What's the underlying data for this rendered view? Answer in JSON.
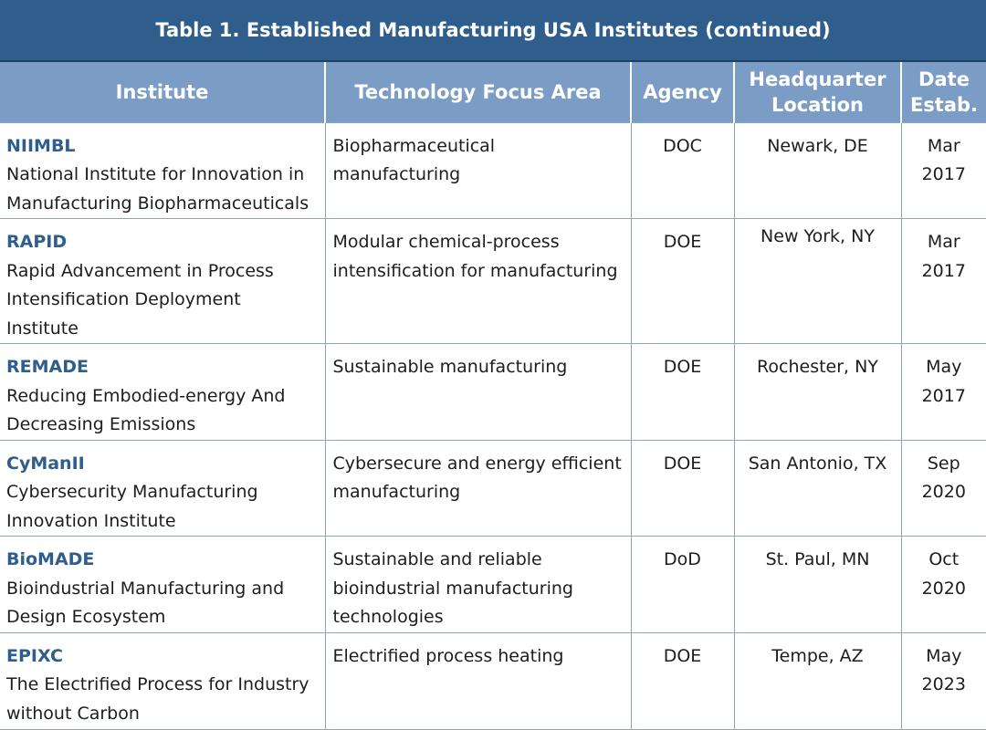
{
  "table": {
    "title": "Table 1. Established Manufacturing USA Institutes (continued)",
    "headers": {
      "institute": "Institute",
      "focus": "Technology Focus Area",
      "agency": "Agency",
      "hq_line1": "Headquarter",
      "hq_line2": "Location",
      "date_line1": "Date",
      "date_line2": "Estab."
    },
    "rows": [
      {
        "abbr": "NIIMBL",
        "name": "National Institute for Innovation in Manufacturing Biopharmaceuticals",
        "focus": "Biopharmaceutical manufacturing",
        "agency": "DOC",
        "location": "Newark, DE",
        "month": "Mar",
        "year": "2017"
      },
      {
        "abbr": "RAPID",
        "name": "Rapid Advancement in Process Intensification Deployment Institute",
        "focus": "Modular chemical-process intensification for manufacturing",
        "agency": "DOE",
        "location": "New York, NY",
        "month": "Mar",
        "year": "2017"
      },
      {
        "abbr": "REMADE",
        "name": "Reducing Embodied-energy And Decreasing Emissions",
        "focus": "Sustainable manufacturing",
        "agency": "DOE",
        "location": "Rochester, NY",
        "month": "May",
        "year": "2017"
      },
      {
        "abbr": "CyManII",
        "name": "Cybersecurity Manufacturing Innovation Institute",
        "focus": "Cybersecure and energy efficient manufacturing",
        "agency": "DOE",
        "location": "San Antonio, TX",
        "month": "Sep",
        "year": "2020"
      },
      {
        "abbr": "BioMADE",
        "name": "Bioindustrial Manufacturing and Design Ecosystem",
        "focus": "Sustainable and reliable bioindustrial manufacturing technologies",
        "agency": "DoD",
        "location": "St. Paul, MN",
        "month": "Oct",
        "year": "2020"
      },
      {
        "abbr": "EPIXC",
        "name": "The Electrified Process for Industry without Carbon",
        "focus": "Electrified process heating",
        "agency": "DOE",
        "location": "Tempe, AZ",
        "month": "May",
        "year": "2023"
      }
    ]
  }
}
